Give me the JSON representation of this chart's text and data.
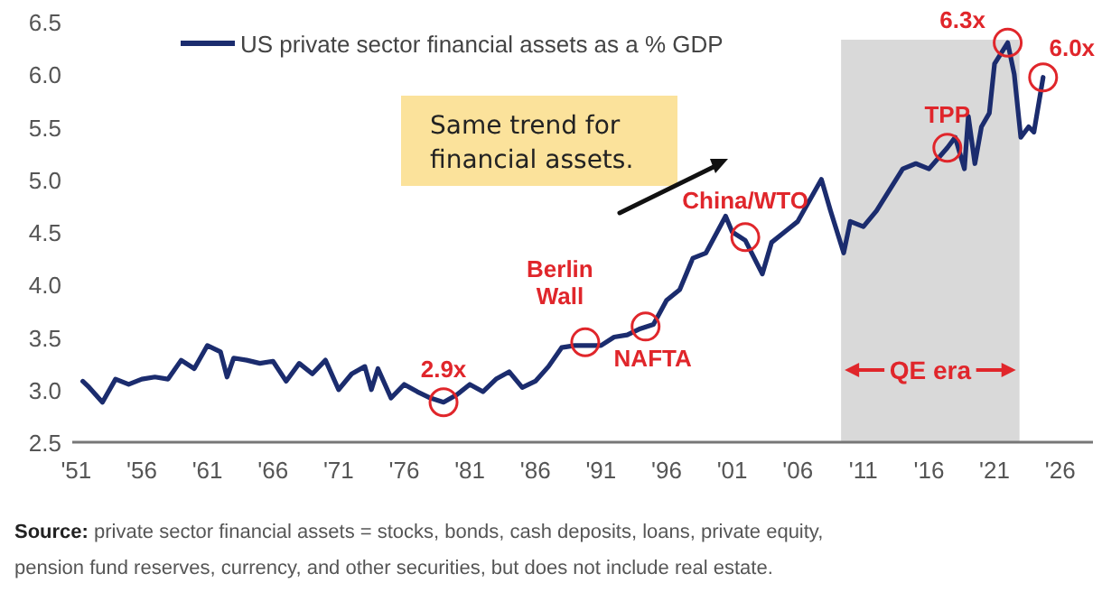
{
  "chart_data": {
    "type": "line",
    "legend": "top left",
    "grid": false,
    "marker": "none",
    "line_style": "solid",
    "x": [
      1951.5,
      1952,
      1953,
      1954,
      1955,
      1956,
      1957,
      1958,
      1959,
      1960,
      1961,
      1962,
      1962.5,
      1963,
      1964,
      1965,
      1966,
      1967,
      1968,
      1969,
      1970,
      1971,
      1972,
      1973,
      1973.5,
      1974,
      1975,
      1976,
      1977,
      1978,
      1979,
      1980,
      1981,
      1982,
      1983,
      1984,
      1985,
      1986,
      1987,
      1988,
      1989,
      1990,
      1991,
      1992,
      1993,
      1994,
      1995,
      1996,
      1997,
      1998,
      1999,
      2000.5,
      2001,
      2002,
      2003.3,
      2004,
      2005,
      2006,
      2007.8,
      2008.5,
      2009.5,
      2010,
      2011,
      2012,
      2013,
      2014,
      2015,
      2016,
      2017.4,
      2018,
      2018.7,
      2019,
      2019.5,
      2020,
      2020.6,
      2021,
      2022,
      2022.5,
      2023,
      2023.6,
      2024,
      2024.7
    ],
    "series": [
      {
        "name": "US private sector financial assets as a % GDP",
        "color": "#1b2c6e",
        "values": [
          3.08,
          3.02,
          2.88,
          3.1,
          3.05,
          3.1,
          3.12,
          3.1,
          3.28,
          3.2,
          3.42,
          3.36,
          3.12,
          3.3,
          3.28,
          3.25,
          3.27,
          3.08,
          3.25,
          3.15,
          3.28,
          3.0,
          3.15,
          3.22,
          3.0,
          3.2,
          2.92,
          3.05,
          2.98,
          2.92,
          2.88,
          2.95,
          3.05,
          2.98,
          3.1,
          3.17,
          3.02,
          3.08,
          3.22,
          3.4,
          3.42,
          3.42,
          3.42,
          3.5,
          3.52,
          3.58,
          3.62,
          3.85,
          3.95,
          4.25,
          4.3,
          4.65,
          4.5,
          4.42,
          4.1,
          4.4,
          4.5,
          4.6,
          5.0,
          4.7,
          4.3,
          4.6,
          4.55,
          4.7,
          4.9,
          5.1,
          5.15,
          5.1,
          5.3,
          5.4,
          5.1,
          5.6,
          5.15,
          5.5,
          5.63,
          6.1,
          6.3,
          6.0,
          5.4,
          5.5,
          5.45,
          5.97
        ]
      }
    ],
    "xlim": [
      1950.7,
      2028.5
    ],
    "ylim": [
      2.5,
      6.5
    ],
    "xticks": [
      {
        "value": 1951,
        "label": "'51"
      },
      {
        "value": 1956,
        "label": "'56"
      },
      {
        "value": 1961,
        "label": "'61"
      },
      {
        "value": 1966,
        "label": "'66"
      },
      {
        "value": 1971,
        "label": "'71"
      },
      {
        "value": 1976,
        "label": "'76"
      },
      {
        "value": 1981,
        "label": "'81"
      },
      {
        "value": 1986,
        "label": "'86"
      },
      {
        "value": 1991,
        "label": "'91"
      },
      {
        "value": 1996,
        "label": "'96"
      },
      {
        "value": 2001,
        "label": "'01"
      },
      {
        "value": 2006,
        "label": "'06"
      },
      {
        "value": 2011,
        "label": "'11"
      },
      {
        "value": 2016,
        "label": "'16"
      },
      {
        "value": 2021,
        "label": "'21"
      },
      {
        "value": 2026,
        "label": "'26"
      }
    ],
    "yticks": [
      2.5,
      {
        "value": 3,
        "label": "3.0"
      },
      3.5,
      {
        "value": 4,
        "label": "4.0"
      },
      4.5,
      {
        "value": 5,
        "label": "5.0"
      },
      5.5,
      {
        "value": 6,
        "label": "6.0"
      },
      6.5
    ],
    "bands": [
      {
        "axis": "x",
        "from": 2009.3,
        "to": 2022.9,
        "label": "QE era",
        "color": "#d9d9d9"
      }
    ],
    "annotations": [
      {
        "text": "2.9x",
        "x": 1979,
        "y": 2.88
      },
      {
        "text": "Berlin Wall",
        "x": 1989.8,
        "y": 3.45
      },
      {
        "text": "NAFTA",
        "x": 1994.4,
        "y": 3.6
      },
      {
        "text": "China/WTO",
        "x": 2002,
        "y": 4.45
      },
      {
        "text": "TPP",
        "x": 2017.4,
        "y": 5.3
      },
      {
        "text": "6.3x",
        "x": 2022,
        "y": 6.3
      },
      {
        "text": "6.0x",
        "x": 2024.7,
        "y": 5.97
      },
      "Same trend for financial assets.",
      "Source: private sector financial assets = stocks, bonds, cash deposits, loans, private equity, pension fund reserves, currency, and other securities, but does not include real estate."
    ]
  }
}
